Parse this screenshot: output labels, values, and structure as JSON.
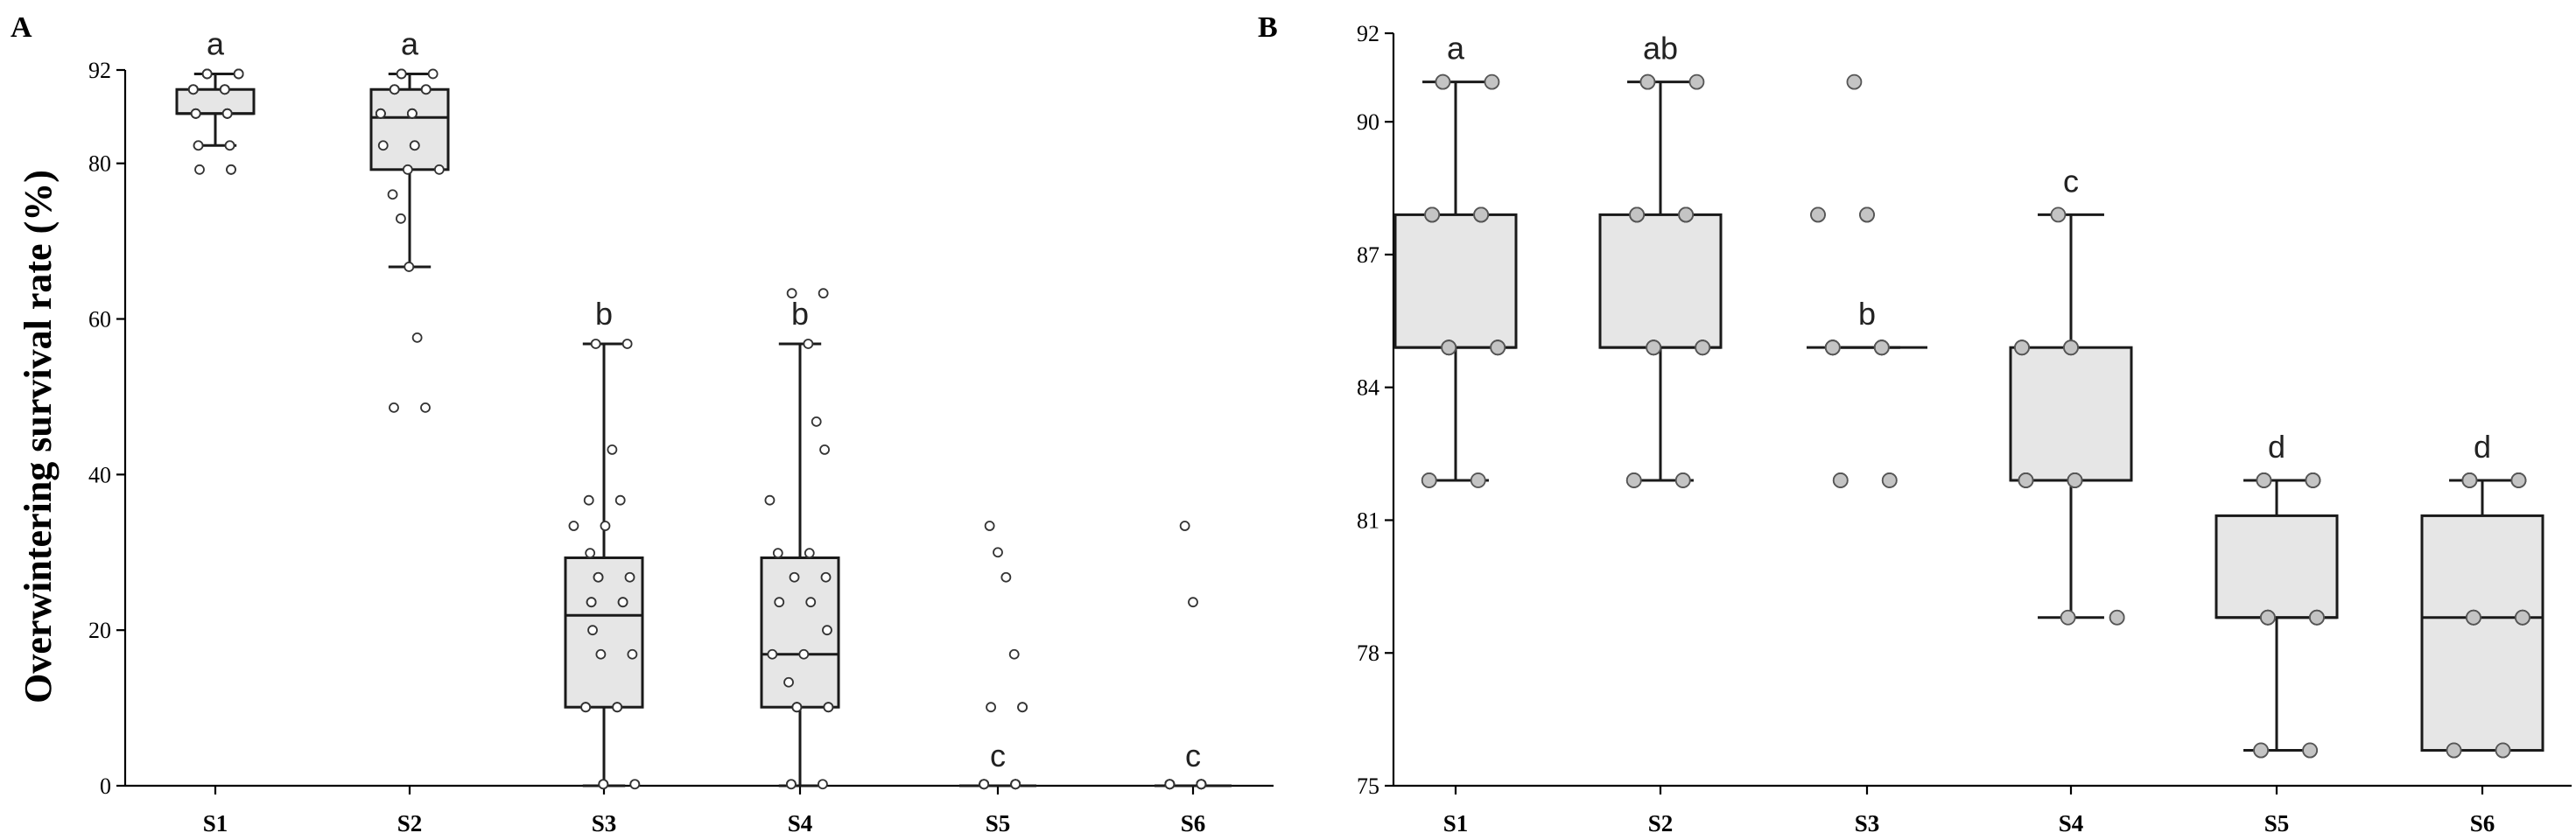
{
  "chart_data": [
    {
      "panel": "A",
      "type": "box",
      "ylabel": "Overwintering survival rate (%)",
      "ylim": [
        0,
        92
      ],
      "yticks": [
        0,
        20,
        40,
        60,
        80,
        92
      ],
      "categories": [
        "S1",
        "S2",
        "S3",
        "S4",
        "S5",
        "S6"
      ],
      "boxes": [
        {
          "category": "S1",
          "min": 82.3,
          "q1": 86.4,
          "median": 86.4,
          "q3": 89.5,
          "max": 91.5,
          "letter": "a"
        },
        {
          "category": "S2",
          "min": 66.7,
          "q1": 79.2,
          "median": 85.9,
          "q3": 89.5,
          "max": 91.5,
          "letter": "a"
        },
        {
          "category": "S3",
          "min": 0,
          "q1": 10.1,
          "median": 21.9,
          "q3": 29.3,
          "max": 56.8,
          "letter": "b"
        },
        {
          "category": "S4",
          "min": 0,
          "q1": 10.1,
          "median": 16.9,
          "q3": 29.3,
          "max": 56.8,
          "letter": "b"
        },
        {
          "category": "S5",
          "min": 0,
          "q1": 0,
          "median": 0,
          "q3": 0,
          "max": 0,
          "letter": "c"
        },
        {
          "category": "S6",
          "min": 0,
          "q1": 0,
          "median": 0,
          "q3": 0,
          "max": 0,
          "letter": "c"
        }
      ],
      "points": [
        [
          91.5,
          91.5,
          91.5,
          91.5,
          91.5,
          91.5,
          89.5,
          89.5,
          89.5,
          89.5,
          89.5,
          89.5,
          89.5,
          89.5,
          86.4,
          86.4,
          86.4,
          86.4,
          86.4,
          86.4,
          86.4,
          86.4,
          82.3,
          82.3,
          82.3,
          82.3,
          79.2,
          79.2,
          79.2
        ],
        [
          91.5,
          91.5,
          91.5,
          89.5,
          89.5,
          89.5,
          89.5,
          89.5,
          89.5,
          86.4,
          86.4,
          86.4,
          86.4,
          86.4,
          86.4,
          86.4,
          86.4,
          82.3,
          82.3,
          82.3,
          79.2,
          79.2,
          76.0,
          72.9,
          66.7,
          57.6,
          48.6,
          48.6
        ],
        [
          56.8,
          56.8,
          43.2,
          36.7,
          36.7,
          33.4,
          33.4,
          29.9,
          26.8,
          26.8,
          26.8,
          23.6,
          23.6,
          23.6,
          23.6,
          20.0,
          16.9,
          16.9,
          10.1,
          10.1,
          10.1,
          10.1,
          10.1,
          10.1,
          0.2,
          0.2,
          0.2,
          0.2,
          0.2
        ],
        [
          63.3,
          63.3,
          56.8,
          46.8,
          43.2,
          36.7,
          29.9,
          29.9,
          26.8,
          26.8,
          23.6,
          23.6,
          20.0,
          16.9,
          16.9,
          13.3,
          10.1,
          10.1,
          10.1,
          10.1,
          10.1,
          10.1,
          10.1,
          0.2,
          0.2,
          0.2
        ],
        [
          33.4,
          30.0,
          26.8,
          16.9,
          10.1,
          10.1,
          10.1,
          0.2,
          0.2,
          0.2,
          0.2,
          0.2,
          0.2,
          0.2,
          0.2,
          0.2,
          0.2,
          0.2,
          0.2,
          0.2,
          0.2,
          0.2,
          0.2
        ],
        [
          33.4,
          23.6,
          0.2,
          0.2,
          0.2,
          0.2,
          0.2,
          0.2,
          0.2,
          0.2,
          0.2,
          0.2,
          0.2,
          0.2,
          0.2,
          0.2,
          0.2,
          0.2,
          0.2,
          0.2,
          0.2,
          0.2
        ]
      ]
    },
    {
      "panel": "B",
      "type": "box",
      "ylabel": "",
      "ylim": [
        75,
        92
      ],
      "yticks": [
        75,
        78,
        81,
        84,
        87,
        90,
        92
      ],
      "categories": [
        "S1",
        "S2",
        "S3",
        "S4",
        "S5",
        "S6"
      ],
      "boxes": [
        {
          "category": "S1",
          "min": 81.9,
          "q1": 84.9,
          "median": 84.9,
          "q3": 87.9,
          "max": 90.9,
          "letter": "a"
        },
        {
          "category": "S2",
          "min": 81.9,
          "q1": 84.9,
          "median": 84.9,
          "q3": 87.9,
          "max": 90.9,
          "letter": "ab"
        },
        {
          "category": "S3",
          "min": 84.9,
          "q1": 84.9,
          "median": 84.9,
          "q3": 84.9,
          "max": 84.9,
          "letter": "b"
        },
        {
          "category": "S4",
          "min": 78.8,
          "q1": 81.9,
          "median": 81.9,
          "q3": 84.9,
          "max": 87.9,
          "letter": "c"
        },
        {
          "category": "S5",
          "min": 75.8,
          "q1": 78.8,
          "median": 78.8,
          "q3": 81.1,
          "max": 81.9,
          "letter": "d"
        },
        {
          "category": "S6",
          "min": 75.8,
          "q1": 75.8,
          "median": 78.8,
          "q3": 81.1,
          "max": 81.9,
          "letter": "d"
        }
      ],
      "points": [
        [
          90.9,
          90.9,
          90.9,
          87.9,
          87.9,
          87.9,
          87.9,
          87.9,
          87.9,
          87.9,
          87.9,
          87.9,
          84.9,
          84.9,
          84.9,
          84.9,
          84.9,
          84.9,
          84.9,
          84.9,
          84.9,
          84.9,
          81.9,
          81.9,
          81.9
        ],
        [
          90.9,
          90.9,
          90.9,
          87.9,
          87.9,
          87.9,
          87.9,
          87.9,
          87.9,
          87.9,
          87.9,
          87.9,
          84.9,
          84.9,
          84.9,
          84.9,
          84.9,
          84.9,
          84.9,
          84.9,
          84.9,
          84.9,
          81.9,
          81.9,
          81.9,
          81.9
        ],
        [
          90.9,
          87.9,
          87.9,
          87.9,
          87.9,
          87.9,
          84.9,
          84.9,
          84.9,
          84.9,
          84.9,
          84.9,
          84.9,
          84.9,
          84.9,
          84.9,
          84.9,
          84.9,
          84.9,
          84.9,
          84.9,
          84.9,
          81.9,
          81.9,
          81.9,
          81.9
        ],
        [
          87.9,
          84.9,
          84.9,
          84.9,
          84.9,
          84.9,
          84.9,
          84.9,
          84.9,
          81.9,
          81.9,
          81.9,
          81.9,
          81.9,
          81.9,
          81.9,
          81.9,
          81.9,
          81.9,
          81.9,
          78.8,
          78.8,
          78.8
        ],
        [
          81.9,
          81.9,
          81.9,
          81.9,
          81.9,
          81.9,
          81.9,
          81.9,
          78.8,
          78.8,
          78.8,
          78.8,
          78.8,
          78.8,
          78.8,
          78.8,
          78.8,
          78.8,
          78.8,
          75.8,
          75.8,
          75.8,
          75.8
        ],
        [
          81.9,
          81.9,
          81.9,
          81.9,
          81.9,
          81.9,
          81.9,
          81.9,
          78.8,
          78.8,
          78.8,
          78.8,
          78.8,
          78.8,
          78.8,
          78.8,
          78.8,
          78.8,
          75.8,
          75.8,
          75.8,
          75.8
        ]
      ]
    }
  ]
}
